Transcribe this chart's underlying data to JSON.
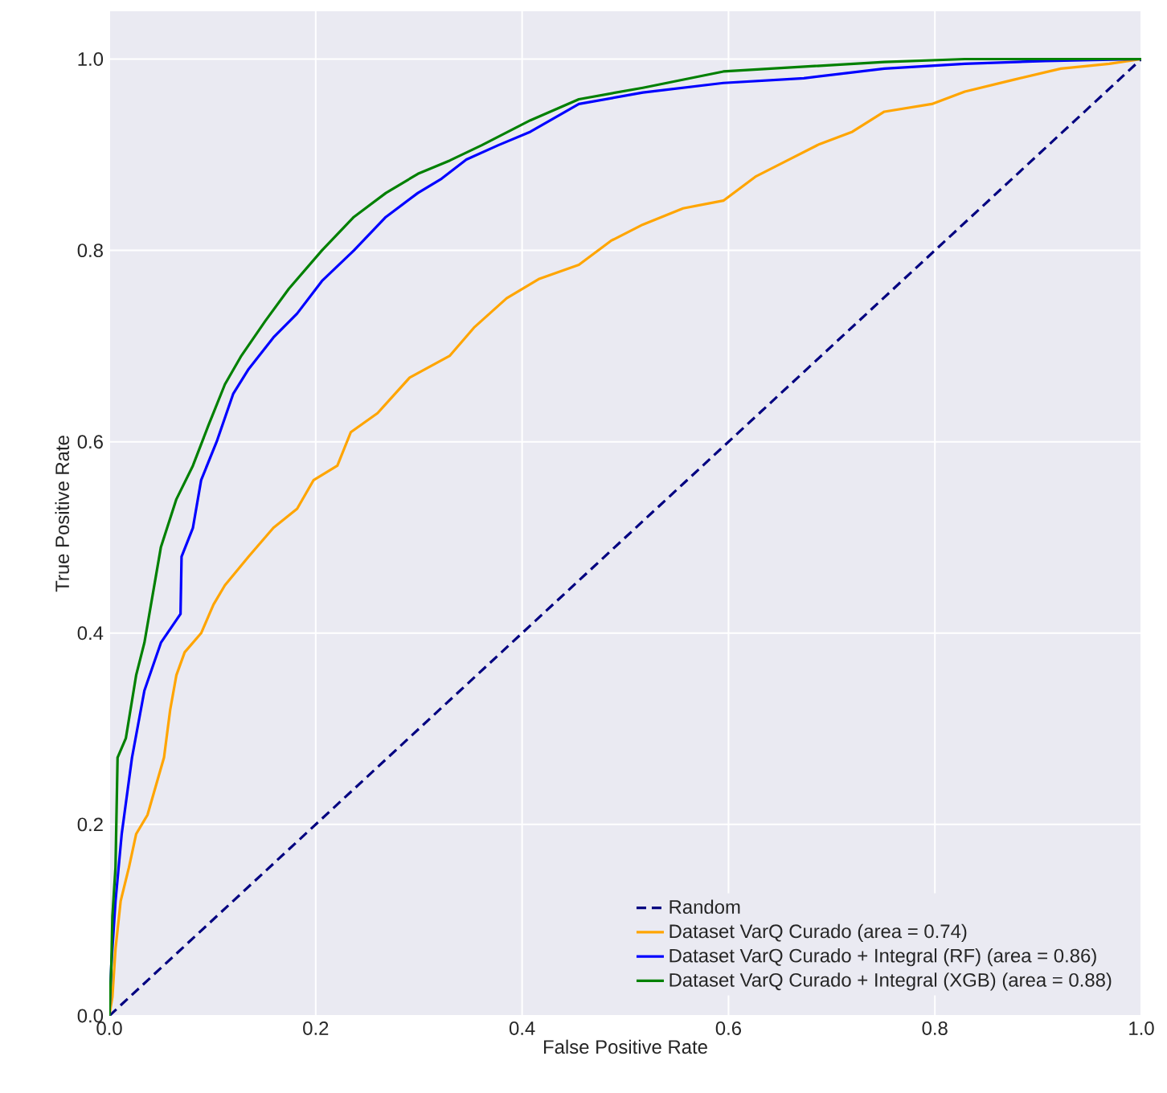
{
  "chart_data": {
    "type": "line",
    "xlabel": "False Positive Rate",
    "ylabel": "True Positive Rate",
    "xlim": [
      0,
      1
    ],
    "ylim": [
      0,
      1.05
    ],
    "xticks": [
      {
        "value": 0,
        "label": "0.0"
      },
      0.2,
      0.4,
      0.6,
      0.8,
      {
        "value": 1,
        "label": "1.0"
      }
    ],
    "yticks": [
      {
        "value": 0,
        "label": "0.0"
      },
      0.2,
      0.4,
      0.6,
      0.8,
      {
        "value": 1,
        "label": "1.0"
      }
    ],
    "grid": true,
    "legend": "bottom right",
    "series": [
      {
        "name": "Random",
        "color": "#000080",
        "line_style": "dashed",
        "x": [
          0,
          1
        ],
        "values": [
          0,
          1
        ]
      },
      {
        "name": "Dataset VarQ Curado (area = 0.74)",
        "color": "#ffa500",
        "x": [
          0,
          0.003,
          0.006,
          0.011,
          0.019,
          0.026,
          0.037,
          0.045,
          0.053,
          0.059,
          0.065,
          0.073,
          0.089,
          0.101,
          0.112,
          0.135,
          0.159,
          0.182,
          0.198,
          0.221,
          0.234,
          0.26,
          0.291,
          0.33,
          0.354,
          0.385,
          0.416,
          0.455,
          0.486,
          0.517,
          0.556,
          0.595,
          0.626,
          0.657,
          0.688,
          0.72,
          0.751,
          0.797,
          0.829,
          0.875,
          0.922,
          0.969,
          1.0
        ],
        "values": [
          0,
          0.02,
          0.07,
          0.12,
          0.155,
          0.19,
          0.21,
          0.24,
          0.27,
          0.32,
          0.356,
          0.38,
          0.4,
          0.43,
          0.45,
          0.48,
          0.51,
          0.53,
          0.56,
          0.575,
          0.61,
          0.63,
          0.667,
          0.69,
          0.72,
          0.75,
          0.77,
          0.785,
          0.81,
          0.827,
          0.844,
          0.852,
          0.877,
          0.894,
          0.911,
          0.924,
          0.945,
          0.953,
          0.966,
          0.978,
          0.99,
          0.995,
          1.0
        ]
      },
      {
        "name": "Dataset VarQ Curado + Integral (RF) (area = 0.86)",
        "color": "#0000ff",
        "x": [
          0,
          0.002,
          0.006,
          0.012,
          0.022,
          0.034,
          0.05,
          0.069,
          0.07,
          0.081,
          0.089,
          0.104,
          0.12,
          0.135,
          0.159,
          0.182,
          0.206,
          0.237,
          0.268,
          0.299,
          0.322,
          0.346,
          0.377,
          0.408,
          0.455,
          0.517,
          0.595,
          0.673,
          0.751,
          0.829,
          0.907,
          1.0
        ],
        "values": [
          0,
          0.054,
          0.12,
          0.19,
          0.27,
          0.34,
          0.39,
          0.42,
          0.48,
          0.51,
          0.56,
          0.6,
          0.65,
          0.676,
          0.709,
          0.734,
          0.768,
          0.8,
          0.835,
          0.86,
          0.875,
          0.895,
          0.91,
          0.924,
          0.953,
          0.965,
          0.975,
          0.98,
          0.99,
          0.995,
          0.998,
          1.0
        ]
      },
      {
        "name": "Dataset VarQ Curado + Integral (XGB) (area = 0.88)",
        "color": "#008000",
        "x": [
          0,
          0.002,
          0.003,
          0.006,
          0.008,
          0.016,
          0.026,
          0.034,
          0.042,
          0.05,
          0.065,
          0.081,
          0.096,
          0.112,
          0.128,
          0.151,
          0.174,
          0.206,
          0.237,
          0.268,
          0.299,
          0.33,
          0.361,
          0.408,
          0.455,
          0.517,
          0.595,
          0.673,
          0.751,
          0.829,
          1.0
        ],
        "values": [
          0,
          0.054,
          0.104,
          0.155,
          0.27,
          0.29,
          0.356,
          0.39,
          0.44,
          0.49,
          0.54,
          0.575,
          0.617,
          0.66,
          0.69,
          0.726,
          0.76,
          0.8,
          0.835,
          0.86,
          0.88,
          0.894,
          0.91,
          0.936,
          0.958,
          0.97,
          0.987,
          0.992,
          0.997,
          1.0,
          1.0
        ]
      }
    ]
  }
}
